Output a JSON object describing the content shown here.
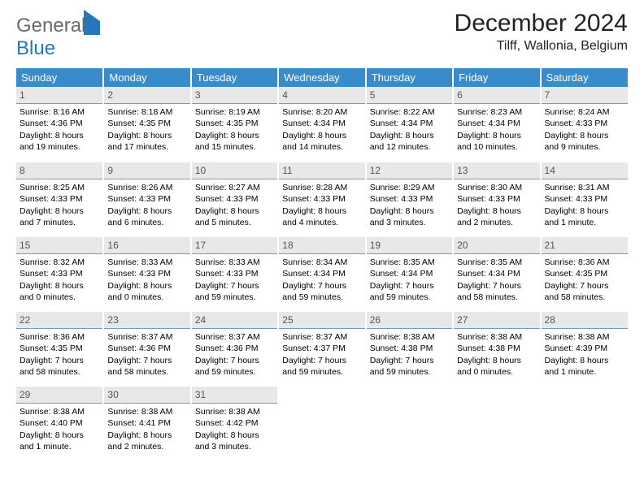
{
  "logo": {
    "word1": "General",
    "word2": "Blue"
  },
  "title": "December 2024",
  "location": "Tilff, Wallonia, Belgium",
  "colors": {
    "header_bg": "#3a8bc9",
    "daynum_bg": "#e8e8e8",
    "daynum_border": "#7a9bb5",
    "logo_gray": "#6a6a6a",
    "logo_blue": "#2477bb"
  },
  "typography": {
    "title_fontsize": 30,
    "location_fontsize": 16,
    "dayhead_fontsize": 13,
    "cell_fontsize": 10.5
  },
  "day_names": [
    "Sunday",
    "Monday",
    "Tuesday",
    "Wednesday",
    "Thursday",
    "Friday",
    "Saturday"
  ],
  "weeks": [
    [
      {
        "n": "1",
        "sr": "8:16 AM",
        "ss": "4:36 PM",
        "dl": "8 hours and 19 minutes."
      },
      {
        "n": "2",
        "sr": "8:18 AM",
        "ss": "4:35 PM",
        "dl": "8 hours and 17 minutes."
      },
      {
        "n": "3",
        "sr": "8:19 AM",
        "ss": "4:35 PM",
        "dl": "8 hours and 15 minutes."
      },
      {
        "n": "4",
        "sr": "8:20 AM",
        "ss": "4:34 PM",
        "dl": "8 hours and 14 minutes."
      },
      {
        "n": "5",
        "sr": "8:22 AM",
        "ss": "4:34 PM",
        "dl": "8 hours and 12 minutes."
      },
      {
        "n": "6",
        "sr": "8:23 AM",
        "ss": "4:34 PM",
        "dl": "8 hours and 10 minutes."
      },
      {
        "n": "7",
        "sr": "8:24 AM",
        "ss": "4:33 PM",
        "dl": "8 hours and 9 minutes."
      }
    ],
    [
      {
        "n": "8",
        "sr": "8:25 AM",
        "ss": "4:33 PM",
        "dl": "8 hours and 7 minutes."
      },
      {
        "n": "9",
        "sr": "8:26 AM",
        "ss": "4:33 PM",
        "dl": "8 hours and 6 minutes."
      },
      {
        "n": "10",
        "sr": "8:27 AM",
        "ss": "4:33 PM",
        "dl": "8 hours and 5 minutes."
      },
      {
        "n": "11",
        "sr": "8:28 AM",
        "ss": "4:33 PM",
        "dl": "8 hours and 4 minutes."
      },
      {
        "n": "12",
        "sr": "8:29 AM",
        "ss": "4:33 PM",
        "dl": "8 hours and 3 minutes."
      },
      {
        "n": "13",
        "sr": "8:30 AM",
        "ss": "4:33 PM",
        "dl": "8 hours and 2 minutes."
      },
      {
        "n": "14",
        "sr": "8:31 AM",
        "ss": "4:33 PM",
        "dl": "8 hours and 1 minute."
      }
    ],
    [
      {
        "n": "15",
        "sr": "8:32 AM",
        "ss": "4:33 PM",
        "dl": "8 hours and 0 minutes."
      },
      {
        "n": "16",
        "sr": "8:33 AM",
        "ss": "4:33 PM",
        "dl": "8 hours and 0 minutes."
      },
      {
        "n": "17",
        "sr": "8:33 AM",
        "ss": "4:33 PM",
        "dl": "7 hours and 59 minutes."
      },
      {
        "n": "18",
        "sr": "8:34 AM",
        "ss": "4:34 PM",
        "dl": "7 hours and 59 minutes."
      },
      {
        "n": "19",
        "sr": "8:35 AM",
        "ss": "4:34 PM",
        "dl": "7 hours and 59 minutes."
      },
      {
        "n": "20",
        "sr": "8:35 AM",
        "ss": "4:34 PM",
        "dl": "7 hours and 58 minutes."
      },
      {
        "n": "21",
        "sr": "8:36 AM",
        "ss": "4:35 PM",
        "dl": "7 hours and 58 minutes."
      }
    ],
    [
      {
        "n": "22",
        "sr": "8:36 AM",
        "ss": "4:35 PM",
        "dl": "7 hours and 58 minutes."
      },
      {
        "n": "23",
        "sr": "8:37 AM",
        "ss": "4:36 PM",
        "dl": "7 hours and 58 minutes."
      },
      {
        "n": "24",
        "sr": "8:37 AM",
        "ss": "4:36 PM",
        "dl": "7 hours and 59 minutes."
      },
      {
        "n": "25",
        "sr": "8:37 AM",
        "ss": "4:37 PM",
        "dl": "7 hours and 59 minutes."
      },
      {
        "n": "26",
        "sr": "8:38 AM",
        "ss": "4:38 PM",
        "dl": "7 hours and 59 minutes."
      },
      {
        "n": "27",
        "sr": "8:38 AM",
        "ss": "4:38 PM",
        "dl": "8 hours and 0 minutes."
      },
      {
        "n": "28",
        "sr": "8:38 AM",
        "ss": "4:39 PM",
        "dl": "8 hours and 1 minute."
      }
    ],
    [
      {
        "n": "29",
        "sr": "8:38 AM",
        "ss": "4:40 PM",
        "dl": "8 hours and 1 minute."
      },
      {
        "n": "30",
        "sr": "8:38 AM",
        "ss": "4:41 PM",
        "dl": "8 hours and 2 minutes."
      },
      {
        "n": "31",
        "sr": "8:38 AM",
        "ss": "4:42 PM",
        "dl": "8 hours and 3 minutes."
      },
      null,
      null,
      null,
      null
    ]
  ],
  "labels": {
    "sunrise": "Sunrise:",
    "sunset": "Sunset:",
    "daylight": "Daylight:"
  }
}
